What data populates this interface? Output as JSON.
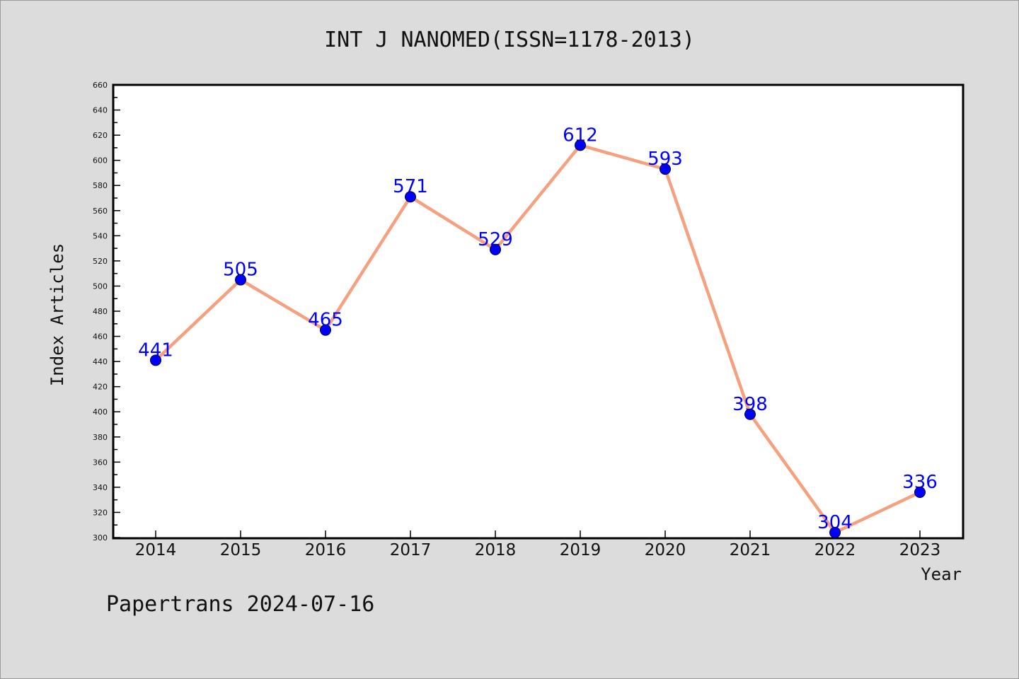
{
  "colors": {
    "background": "#dcdcdc",
    "plot_background": "#ffffff",
    "line": "#f5a07e",
    "marker": "#0000ff",
    "data_label": "#0000ff"
  },
  "chart_data": {
    "type": "line",
    "title": "INT J NANOMED(ISSN=1178-2013)",
    "xlabel": "Year",
    "ylabel": "Index Articles",
    "categories": [
      "2014",
      "2015",
      "2016",
      "2017",
      "2018",
      "2019",
      "2020",
      "2021",
      "2022",
      "2023"
    ],
    "series": [
      {
        "values": [
          441,
          505,
          465,
          571,
          529,
          612,
          593,
          398,
          304,
          336
        ]
      }
    ],
    "data_labels": [
      "441",
      "505",
      "465",
      "571",
      "529",
      "612",
      "593",
      "398",
      "304",
      "336"
    ],
    "ylim": [
      300,
      660
    ],
    "y_ticks": [
      300,
      320,
      340,
      360,
      380,
      400,
      420,
      440,
      460,
      480,
      500,
      520,
      540,
      560,
      580,
      600,
      620,
      640,
      660
    ],
    "y_minor_step": 10,
    "grid": false,
    "marker": "circle"
  },
  "footer": "Papertrans 2024-07-16"
}
